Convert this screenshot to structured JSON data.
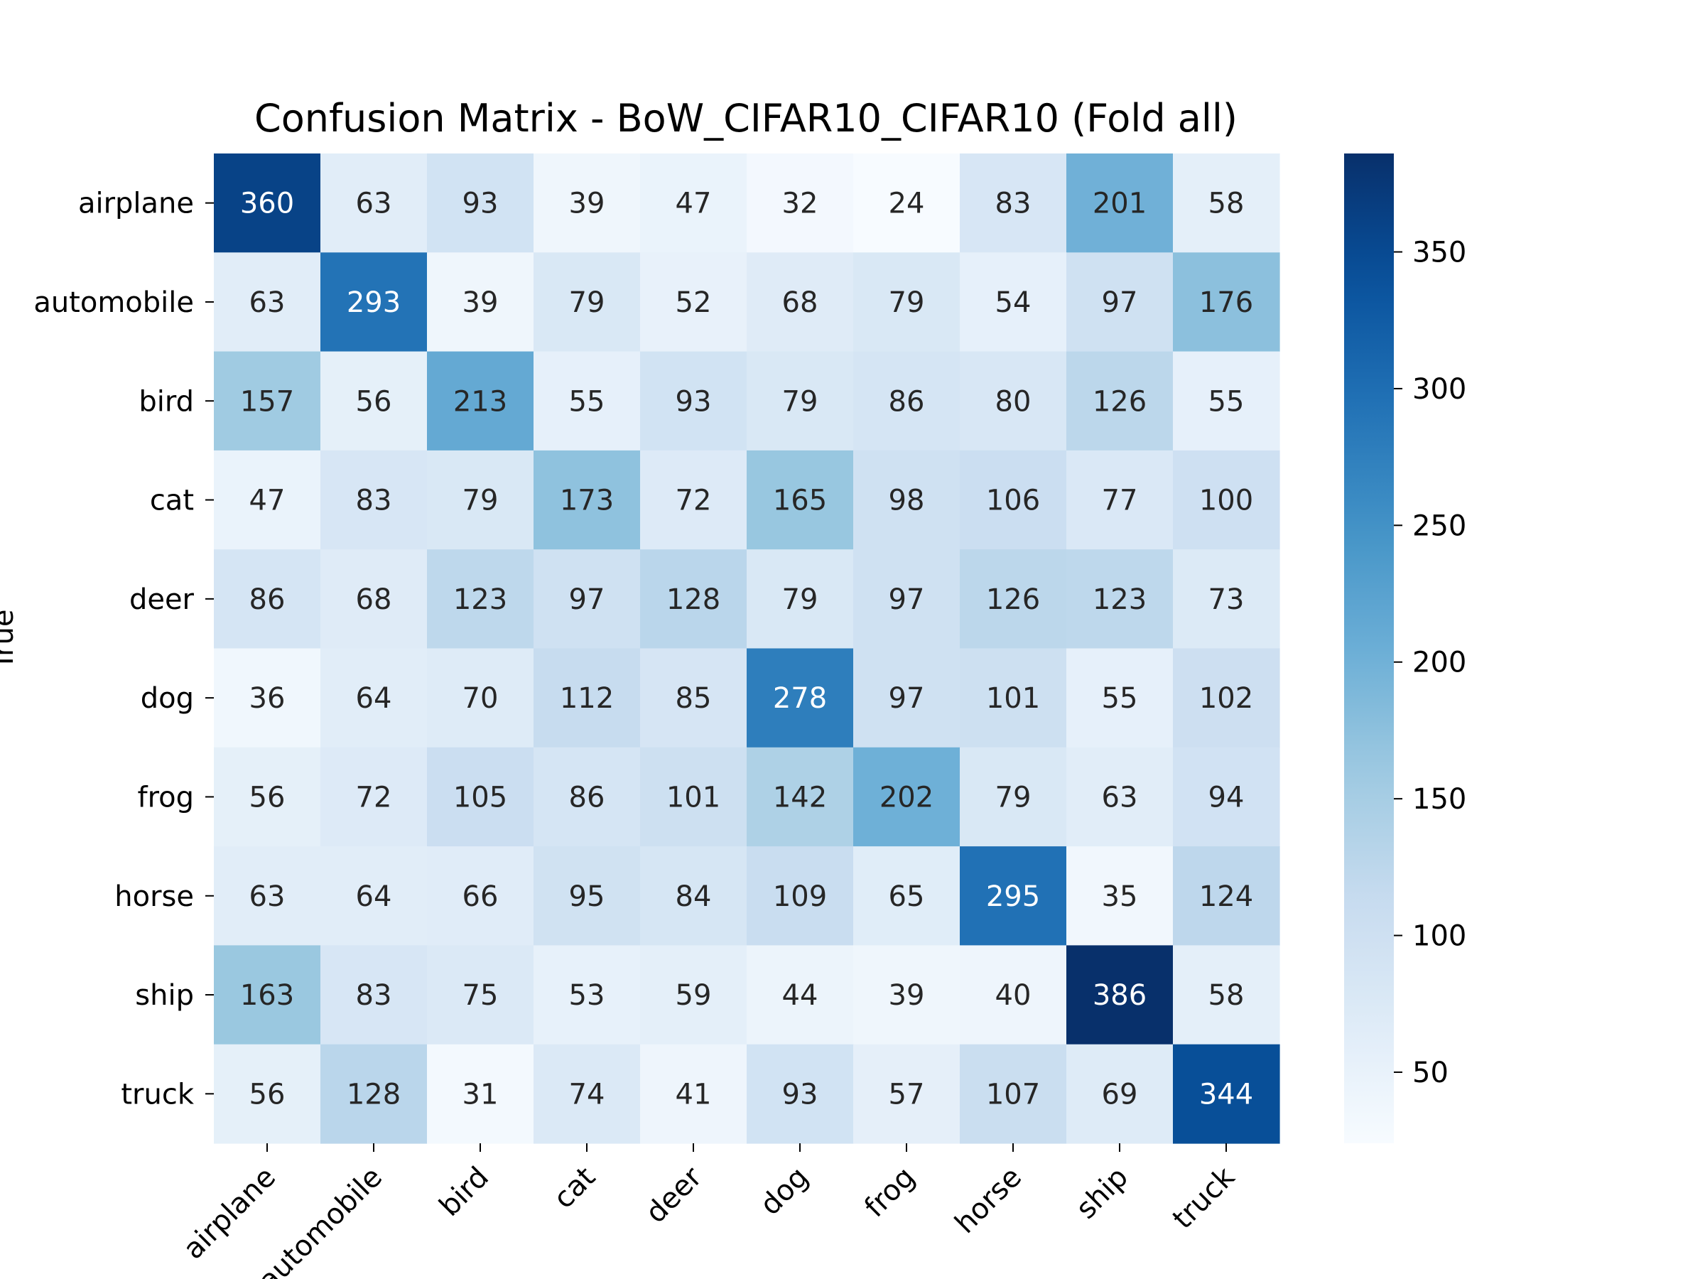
{
  "chart_data": {
    "type": "heatmap",
    "title": "Confusion Matrix - BoW_CIFAR10_CIFAR10 (Fold all)",
    "ylabel": "True",
    "xlabel": "",
    "x_categories": [
      "airplane",
      "automobile",
      "bird",
      "cat",
      "deer",
      "dog",
      "frog",
      "horse",
      "ship",
      "truck"
    ],
    "y_categories": [
      "airplane",
      "automobile",
      "bird",
      "cat",
      "deer",
      "dog",
      "frog",
      "horse",
      "ship",
      "truck"
    ],
    "values": [
      [
        360,
        63,
        93,
        39,
        47,
        32,
        24,
        83,
        201,
        58
      ],
      [
        63,
        293,
        39,
        79,
        52,
        68,
        79,
        54,
        97,
        176
      ],
      [
        157,
        56,
        213,
        55,
        93,
        79,
        86,
        80,
        126,
        55
      ],
      [
        47,
        83,
        79,
        173,
        72,
        165,
        98,
        106,
        77,
        100
      ],
      [
        86,
        68,
        123,
        97,
        128,
        79,
        97,
        126,
        123,
        73
      ],
      [
        36,
        64,
        70,
        112,
        85,
        278,
        97,
        101,
        55,
        102
      ],
      [
        56,
        72,
        105,
        86,
        101,
        142,
        202,
        79,
        63,
        94
      ],
      [
        63,
        64,
        66,
        95,
        84,
        109,
        65,
        295,
        35,
        124
      ],
      [
        163,
        83,
        75,
        53,
        59,
        44,
        39,
        40,
        386,
        58
      ],
      [
        56,
        128,
        31,
        74,
        41,
        93,
        57,
        107,
        69,
        344
      ]
    ],
    "colormap": "Blues",
    "colorbar": {
      "min": 24,
      "max": 386,
      "ticks": [
        50,
        100,
        150,
        200,
        250,
        300,
        350
      ]
    },
    "legend": "colorbar-right"
  }
}
